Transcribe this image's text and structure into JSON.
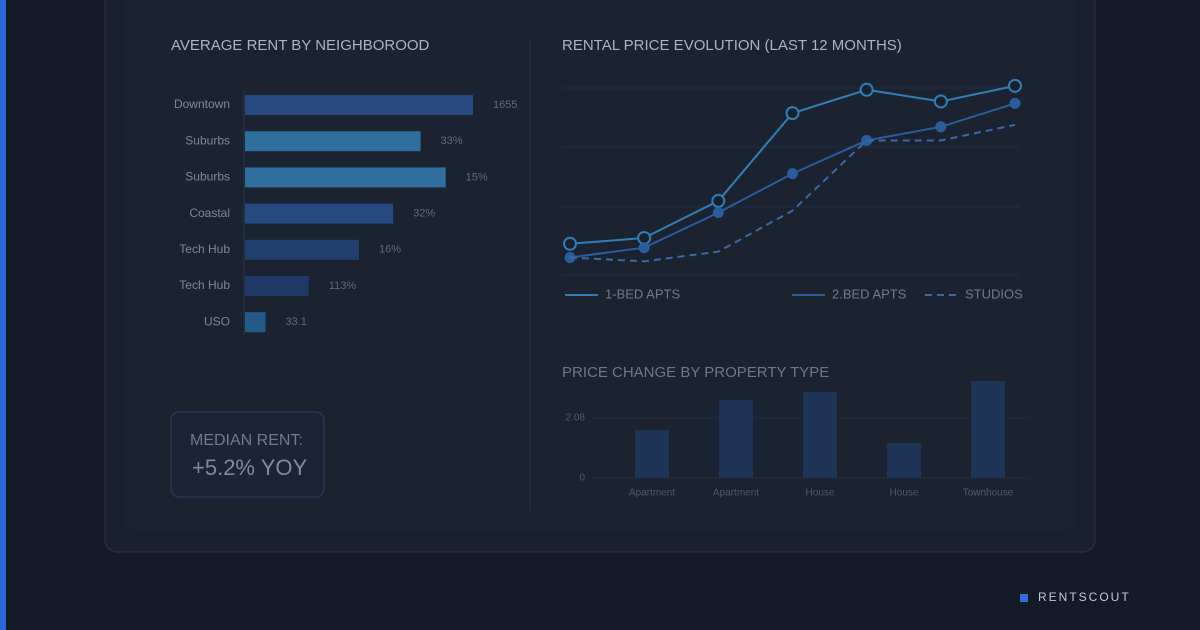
{
  "chart_data": [
    {
      "type": "bar",
      "orientation": "horizontal",
      "title": "AVERAGE RENT BY NEIGHBOROOD",
      "categories": [
        "Downtown",
        "Suburbs",
        "Suburbs",
        "Coastal",
        "Tech Hub",
        "Tech Hub",
        "USO"
      ],
      "values": [
        100,
        77,
        88,
        65,
        50,
        28,
        9
      ],
      "bar_labels": [
        "1655",
        "33%",
        "15%",
        "32%",
        "16%",
        "113%",
        "33.1"
      ],
      "colors": [
        "#244a80",
        "#2e6f9e",
        "#2e6f9e",
        "#244a80",
        "#203f6e",
        "#1f3a66",
        "#245a8a"
      ]
    },
    {
      "type": "line",
      "title": "RENTAL PRICE EVOLUTION (LAST 12 MONTHS)",
      "categories": [
        null,
        null,
        null,
        null,
        null,
        null,
        null
      ],
      "ylim": [
        0,
        100
      ],
      "grid": true,
      "legend": "bottom",
      "series": [
        {
          "name": "1-BED APTS",
          "color": "#2f7fb5",
          "values": [
            16,
            19,
            38,
            83,
            95,
            89,
            97
          ]
        },
        {
          "name": "2.BED APTS",
          "color": "#2b5c9c",
          "values": [
            9,
            14,
            32,
            52,
            69,
            76,
            88
          ]
        },
        {
          "name": "STUDIOS",
          "color": "#3a69a6",
          "dashed": true,
          "values": [
            9,
            7,
            12,
            33,
            69,
            69,
            77
          ]
        }
      ]
    },
    {
      "type": "bar",
      "orientation": "vertical",
      "title": "PRICE CHANGE BY PROPERTY TYPE",
      "categories": [
        "Apartment",
        "Apartment",
        "House",
        "House",
        "Townhouse"
      ],
      "values": [
        1.66,
        2.7,
        2.98,
        1.21,
        3.36
      ],
      "color": "#1f3558",
      "ylim": [
        0,
        3.5
      ],
      "yticks": [
        0,
        2.08
      ]
    }
  ],
  "widget": {
    "label": "MEDIAN RENT:",
    "value": "+5.2% YOY"
  },
  "brand": "RENTSCOUT"
}
